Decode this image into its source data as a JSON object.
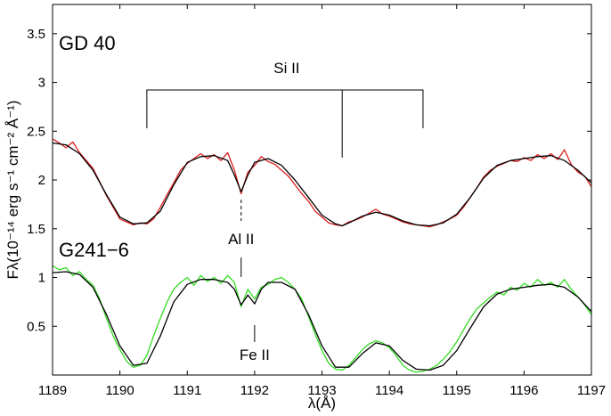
{
  "chart_data": {
    "type": "line",
    "xlabel": "λ(Å)",
    "ylabel": "Fλ(10⁻¹⁴ erg s⁻¹ cm⁻² Å⁻¹)",
    "xlim": [
      1189,
      1197
    ],
    "ylim": [
      0,
      3.8
    ],
    "x_ticks": [
      "1189",
      "1190",
      "1191",
      "1192",
      "1193",
      "1194",
      "1195",
      "1196",
      "1197"
    ],
    "y_ticks": [
      "0.5",
      "1",
      "1.5",
      "2",
      "2.5",
      "3",
      "3.5"
    ],
    "grid": false,
    "stars": [
      {
        "label": "GD 40",
        "observed_color": "#dd1e1e",
        "model_color": "#000000",
        "model": {
          "x": [
            1189.0,
            1189.2,
            1189.4,
            1189.6,
            1189.8,
            1190.0,
            1190.2,
            1190.4,
            1190.6,
            1190.8,
            1191.0,
            1191.2,
            1191.4,
            1191.6,
            1191.7,
            1191.8,
            1191.9,
            1192.0,
            1192.2,
            1192.4,
            1192.6,
            1192.8,
            1193.0,
            1193.2,
            1193.3,
            1193.4,
            1193.6,
            1193.8,
            1194.0,
            1194.2,
            1194.4,
            1194.6,
            1194.8,
            1195.0,
            1195.2,
            1195.4,
            1195.6,
            1195.8,
            1196.0,
            1196.2,
            1196.4,
            1196.6,
            1196.8,
            1197.0
          ],
          "y": [
            2.38,
            2.36,
            2.27,
            2.1,
            1.85,
            1.62,
            1.55,
            1.56,
            1.68,
            1.95,
            2.18,
            2.24,
            2.25,
            2.2,
            2.05,
            1.88,
            2.05,
            2.18,
            2.22,
            2.15,
            2.0,
            1.82,
            1.64,
            1.55,
            1.53,
            1.56,
            1.63,
            1.67,
            1.64,
            1.58,
            1.54,
            1.53,
            1.56,
            1.65,
            1.82,
            2.02,
            2.15,
            2.2,
            2.22,
            2.24,
            2.25,
            2.2,
            2.1,
            1.97
          ]
        },
        "observed": {
          "x": [
            1189.0,
            1189.1,
            1189.2,
            1189.3,
            1189.4,
            1189.5,
            1189.6,
            1189.7,
            1189.8,
            1189.9,
            1190.0,
            1190.1,
            1190.2,
            1190.3,
            1190.4,
            1190.5,
            1190.6,
            1190.7,
            1190.8,
            1190.9,
            1191.0,
            1191.1,
            1191.2,
            1191.3,
            1191.4,
            1191.5,
            1191.6,
            1191.7,
            1191.8,
            1191.9,
            1192.0,
            1192.1,
            1192.2,
            1192.3,
            1192.4,
            1192.5,
            1192.6,
            1192.7,
            1192.8,
            1192.9,
            1193.0,
            1193.1,
            1193.2,
            1193.3,
            1193.4,
            1193.5,
            1193.6,
            1193.7,
            1193.8,
            1193.9,
            1194.0,
            1194.1,
            1194.2,
            1194.3,
            1194.4,
            1194.5,
            1194.6,
            1194.7,
            1194.8,
            1194.9,
            1195.0,
            1195.1,
            1195.2,
            1195.3,
            1195.4,
            1195.5,
            1195.6,
            1195.7,
            1195.8,
            1195.9,
            1196.0,
            1196.1,
            1196.2,
            1196.3,
            1196.4,
            1196.5,
            1196.6,
            1196.7,
            1196.8,
            1196.9,
            1197.0
          ],
          "y": [
            2.42,
            2.38,
            2.33,
            2.39,
            2.28,
            2.2,
            2.12,
            1.98,
            1.84,
            1.72,
            1.6,
            1.57,
            1.54,
            1.56,
            1.55,
            1.6,
            1.72,
            1.85,
            1.97,
            2.1,
            2.17,
            2.22,
            2.27,
            2.22,
            2.26,
            2.2,
            2.28,
            2.1,
            1.86,
            2.08,
            2.15,
            2.24,
            2.19,
            2.16,
            2.1,
            2.04,
            1.95,
            1.86,
            1.78,
            1.68,
            1.62,
            1.56,
            1.54,
            1.53,
            1.57,
            1.59,
            1.62,
            1.66,
            1.7,
            1.65,
            1.63,
            1.6,
            1.57,
            1.55,
            1.54,
            1.53,
            1.52,
            1.54,
            1.57,
            1.6,
            1.64,
            1.72,
            1.82,
            1.92,
            2.03,
            2.1,
            2.14,
            2.17,
            2.2,
            2.19,
            2.23,
            2.2,
            2.26,
            2.22,
            2.27,
            2.21,
            2.31,
            2.16,
            2.08,
            2.04,
            1.93
          ]
        }
      },
      {
        "label": "G241−6",
        "observed_color": "#33dd22",
        "model_color": "#000000",
        "model": {
          "x": [
            1189.0,
            1189.2,
            1189.4,
            1189.6,
            1189.8,
            1190.0,
            1190.2,
            1190.4,
            1190.6,
            1190.8,
            1191.0,
            1191.2,
            1191.4,
            1191.6,
            1191.7,
            1191.8,
            1191.9,
            1192.0,
            1192.1,
            1192.2,
            1192.4,
            1192.6,
            1192.8,
            1193.0,
            1193.2,
            1193.4,
            1193.6,
            1193.8,
            1194.0,
            1194.2,
            1194.4,
            1194.6,
            1194.8,
            1195.0,
            1195.2,
            1195.4,
            1195.6,
            1195.8,
            1196.0,
            1196.2,
            1196.4,
            1196.6,
            1196.8,
            1197.0
          ],
          "y": [
            1.05,
            1.06,
            1.03,
            0.9,
            0.62,
            0.3,
            0.1,
            0.12,
            0.4,
            0.75,
            0.93,
            0.98,
            0.98,
            0.95,
            0.88,
            0.72,
            0.82,
            0.73,
            0.88,
            0.95,
            0.95,
            0.88,
            0.62,
            0.3,
            0.08,
            0.08,
            0.22,
            0.33,
            0.3,
            0.15,
            0.06,
            0.05,
            0.1,
            0.25,
            0.48,
            0.7,
            0.83,
            0.88,
            0.9,
            0.92,
            0.93,
            0.9,
            0.8,
            0.65
          ]
        },
        "observed": {
          "x": [
            1189.0,
            1189.1,
            1189.2,
            1189.3,
            1189.4,
            1189.5,
            1189.6,
            1189.7,
            1189.8,
            1189.9,
            1190.0,
            1190.1,
            1190.2,
            1190.3,
            1190.4,
            1190.5,
            1190.6,
            1190.7,
            1190.8,
            1190.9,
            1191.0,
            1191.1,
            1191.2,
            1191.3,
            1191.4,
            1191.5,
            1191.6,
            1191.7,
            1191.8,
            1191.9,
            1192.0,
            1192.1,
            1192.2,
            1192.3,
            1192.4,
            1192.5,
            1192.6,
            1192.7,
            1192.8,
            1192.9,
            1193.0,
            1193.1,
            1193.2,
            1193.3,
            1193.4,
            1193.5,
            1193.6,
            1193.7,
            1193.8,
            1193.9,
            1194.0,
            1194.1,
            1194.2,
            1194.3,
            1194.4,
            1194.5,
            1194.6,
            1194.7,
            1194.8,
            1194.9,
            1195.0,
            1195.1,
            1195.2,
            1195.3,
            1195.4,
            1195.5,
            1195.6,
            1195.7,
            1195.8,
            1195.9,
            1196.0,
            1196.1,
            1196.2,
            1196.3,
            1196.4,
            1196.5,
            1196.6,
            1196.7,
            1196.8,
            1196.9,
            1197.0
          ],
          "y": [
            1.12,
            1.08,
            1.1,
            1.02,
            1.06,
            0.98,
            0.92,
            0.78,
            0.58,
            0.4,
            0.26,
            0.14,
            0.08,
            0.1,
            0.2,
            0.4,
            0.58,
            0.75,
            0.88,
            0.95,
            1.0,
            0.92,
            1.02,
            0.96,
            1.0,
            0.94,
            1.02,
            0.95,
            0.7,
            0.88,
            0.78,
            0.9,
            0.93,
            0.98,
            1.0,
            0.95,
            0.88,
            0.78,
            0.6,
            0.42,
            0.25,
            0.12,
            0.06,
            0.05,
            0.1,
            0.18,
            0.26,
            0.32,
            0.35,
            0.33,
            0.28,
            0.2,
            0.1,
            0.05,
            0.03,
            0.04,
            0.06,
            0.1,
            0.16,
            0.24,
            0.34,
            0.46,
            0.58,
            0.68,
            0.74,
            0.8,
            0.85,
            0.82,
            0.9,
            0.87,
            0.94,
            0.9,
            0.98,
            0.92,
            0.95,
            0.9,
            0.98,
            0.88,
            0.8,
            0.72,
            0.62
          ]
        }
      }
    ],
    "annotations": [
      {
        "id": "si",
        "text": "Si II",
        "lines_x": [
          1190.4,
          1193.3,
          1194.5
        ]
      },
      {
        "id": "al",
        "text": "Al II",
        "x": 1191.8
      },
      {
        "id": "fe",
        "text": "Fe II",
        "x": 1192.0
      }
    ]
  }
}
